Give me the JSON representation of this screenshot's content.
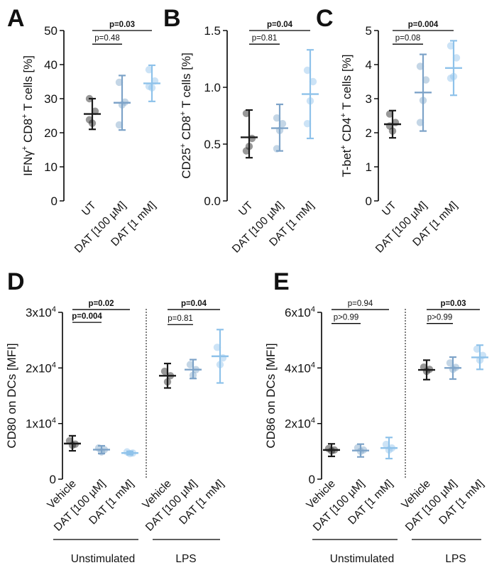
{
  "chart_data": [
    {
      "id": "A",
      "letter": "A",
      "type": "scatter",
      "ylabel_main": "IFNγ",
      "ylabel_parts": [
        [
          "IFNγ",
          ""
        ],
        [
          "+",
          "sup"
        ],
        [
          " CD8",
          ""
        ],
        [
          "+",
          "sup"
        ],
        [
          " T cells [%]",
          ""
        ]
      ],
      "ylim": [
        0,
        50
      ],
      "yticks": [
        0,
        10,
        20,
        30,
        40,
        50
      ],
      "ytick_labels": [
        "0",
        "10",
        "20",
        "30",
        "40",
        "50"
      ],
      "categories": [
        "UT",
        "DAT [100 µM]",
        "DAT [1 mM]"
      ],
      "colors": [
        "#1a1a1a",
        "#7da3c8",
        "#8ec2ea"
      ],
      "mean": [
        25.5,
        28.8,
        34.5
      ],
      "sd_low": [
        21.0,
        20.8,
        29.2
      ],
      "sd_high": [
        30.0,
        36.8,
        39.8
      ],
      "points": [
        [
          30.0,
          26.3,
          22.8,
          23.8
        ],
        [
          34.8,
          29.0,
          28.2,
          22.3
        ],
        [
          38.5,
          35.2,
          33.2,
          33.6
        ]
      ],
      "comparisons": [
        {
          "from": 0,
          "to": 1,
          "label": "p=0.48",
          "bold": false,
          "y": 46
        },
        {
          "from": 0,
          "to": 2,
          "label": "p=0.03",
          "bold": true,
          "y": 50
        }
      ]
    },
    {
      "id": "B",
      "letter": "B",
      "type": "scatter",
      "ylabel_parts": [
        [
          "CD25",
          ""
        ],
        [
          "+",
          "sup"
        ],
        [
          " CD8",
          ""
        ],
        [
          "+",
          "sup"
        ],
        [
          " T cells [%]",
          ""
        ]
      ],
      "ylim": [
        0,
        1.5
      ],
      "yticks": [
        0,
        0.5,
        1.0,
        1.5
      ],
      "ytick_labels": [
        "0.0",
        "0.5",
        "1.0",
        "1.5"
      ],
      "categories": [
        "UT",
        "DAT [100 µM]",
        "DAT [1 mM]"
      ],
      "colors": [
        "#1a1a1a",
        "#7da3c8",
        "#8ec2ea"
      ],
      "mean": [
        0.56,
        0.64,
        0.94
      ],
      "sd_low": [
        0.38,
        0.44,
        0.55
      ],
      "sd_high": [
        0.8,
        0.85,
        1.33
      ],
      "points": [
        [
          0.77,
          0.55,
          0.48,
          0.44
        ],
        [
          0.73,
          0.68,
          0.62,
          0.46
        ],
        [
          1.15,
          1.05,
          0.88,
          0.68
        ]
      ],
      "comparisons": [
        {
          "from": 0,
          "to": 1,
          "label": "p=0.81",
          "bold": false,
          "y": 1.38
        },
        {
          "from": 0,
          "to": 2,
          "label": "p=0.04",
          "bold": true,
          "y": 1.5
        }
      ]
    },
    {
      "id": "C",
      "letter": "C",
      "type": "scatter",
      "ylabel_parts": [
        [
          "T-bet",
          ""
        ],
        [
          "+",
          "sup"
        ],
        [
          " CD4",
          ""
        ],
        [
          "+",
          "sup"
        ],
        [
          " T cells [%]",
          ""
        ]
      ],
      "ylim": [
        0,
        5
      ],
      "yticks": [
        0,
        1,
        2,
        3,
        4,
        5
      ],
      "ytick_labels": [
        "0",
        "1",
        "2",
        "3",
        "4",
        "5"
      ],
      "categories": [
        "UT",
        "DAT [100 µM]",
        "DAT [1 mM]"
      ],
      "colors": [
        "#1a1a1a",
        "#7da3c8",
        "#8ec2ea"
      ],
      "mean": [
        2.25,
        3.18,
        3.9
      ],
      "sd_low": [
        1.85,
        2.05,
        3.1
      ],
      "sd_high": [
        2.65,
        4.3,
        4.7
      ],
      "points": [
        [
          2.55,
          2.3,
          2.05,
          2.2
        ],
        [
          3.95,
          3.55,
          2.95,
          2.3
        ],
        [
          4.55,
          4.2,
          3.65,
          3.6
        ]
      ],
      "comparisons": [
        {
          "from": 0,
          "to": 1,
          "label": "p=0.08",
          "bold": false,
          "y": 4.6
        },
        {
          "from": 0,
          "to": 2,
          "label": "p=0.004",
          "bold": true,
          "y": 5.0
        }
      ]
    },
    {
      "id": "D",
      "letter": "D",
      "type": "scatter",
      "ylabel_parts": [
        [
          "CD80 on DCs [MFI]",
          ""
        ]
      ],
      "ylim": [
        0,
        30000
      ],
      "yticks": [
        0,
        10000,
        20000,
        30000
      ],
      "ytick_labels": [
        "0",
        "1x10⁴",
        "2x10⁴",
        "3x10⁴"
      ],
      "ytick_base": [
        "0",
        "1x10",
        "2x10",
        "3x10"
      ],
      "ytick_exp": [
        "",
        "4",
        "4",
        "4"
      ],
      "categories": [
        "Vehicle",
        "DAT [100 µM]",
        "DAT [1 mM]",
        "Vehicle",
        "DAT [100 µM]",
        "DAT [1 mM]"
      ],
      "colors": [
        "#1a1a1a",
        "#7da3c8",
        "#8ec2ea",
        "#1a1a1a",
        "#7da3c8",
        "#8ec2ea"
      ],
      "mean": [
        6400,
        5300,
        4700,
        18600,
        19700,
        22100
      ],
      "sd_low": [
        5100,
        4600,
        4400,
        16400,
        18100,
        17300
      ],
      "sd_high": [
        7800,
        6000,
        5000,
        20800,
        21500,
        26900
      ],
      "points": [
        [
          6900,
          6300,
          6100
        ],
        [
          5600,
          5300,
          4900
        ],
        [
          4900,
          4700,
          4600
        ],
        [
          19400,
          18600,
          17500
        ],
        [
          20600,
          19700,
          18700
        ],
        [
          23700,
          21800,
          20600
        ]
      ],
      "groups": [
        {
          "label": "Unstimulated",
          "from": 0,
          "to": 2
        },
        {
          "label": "LPS",
          "from": 3,
          "to": 5
        }
      ],
      "comparisons": [
        {
          "from": 0,
          "to": 1,
          "label": "p=0.004",
          "bold": true,
          "y": 28200
        },
        {
          "from": 0,
          "to": 2,
          "label": "p=0.02",
          "bold": true,
          "y": 30500
        },
        {
          "from": 3,
          "to": 4,
          "label": "p=0.81",
          "bold": false,
          "y": 27800
        },
        {
          "from": 3,
          "to": 5,
          "label": "p=0.04",
          "bold": true,
          "y": 30500
        }
      ]
    },
    {
      "id": "E",
      "letter": "E",
      "type": "scatter",
      "ylabel_parts": [
        [
          "CD86 on DCs [MFI]",
          ""
        ]
      ],
      "ylim": [
        0,
        60000
      ],
      "yticks": [
        0,
        20000,
        40000,
        60000
      ],
      "ytick_labels": [
        "0",
        "2x10⁴",
        "4x10⁴",
        "6x10⁴"
      ],
      "ytick_base": [
        "0",
        "2x10",
        "4x10",
        "6x10"
      ],
      "ytick_exp": [
        "",
        "4",
        "4",
        "4"
      ],
      "categories": [
        "Vehicle",
        "DAT [100 µM]",
        "DAT [1 mM]",
        "Vehicle",
        "DAT [100 µM]",
        "DAT [1 mM]"
      ],
      "colors": [
        "#1a1a1a",
        "#7da3c8",
        "#8ec2ea",
        "#1a1a1a",
        "#7da3c8",
        "#8ec2ea"
      ],
      "mean": [
        10500,
        10300,
        11200,
        39300,
        40000,
        43800
      ],
      "sd_low": [
        8200,
        8000,
        7400,
        35800,
        36000,
        39500
      ],
      "sd_high": [
        12700,
        12600,
        15000,
        42800,
        43900,
        48200
      ],
      "points": [
        [
          11000,
          10500,
          10200
        ],
        [
          11300,
          10500,
          10000
        ],
        [
          12500,
          11200,
          10500
        ],
        [
          40300,
          39500,
          38800
        ],
        [
          41800,
          40200,
          39500
        ],
        [
          46800,
          44500,
          42800
        ]
      ],
      "groups": [
        {
          "label": "Unstimulated",
          "from": 0,
          "to": 2
        },
        {
          "label": "LPS",
          "from": 3,
          "to": 5
        }
      ],
      "comparisons": [
        {
          "from": 0,
          "to": 1,
          "label": "p>0.99",
          "bold": false,
          "y": 56000
        },
        {
          "from": 0,
          "to": 2,
          "label": "p=0.94",
          "bold": false,
          "y": 61000
        },
        {
          "from": 3,
          "to": 4,
          "label": "p>0.99",
          "bold": false,
          "y": 56000
        },
        {
          "from": 3,
          "to": 5,
          "label": "p=0.03",
          "bold": true,
          "y": 61000
        }
      ]
    }
  ]
}
